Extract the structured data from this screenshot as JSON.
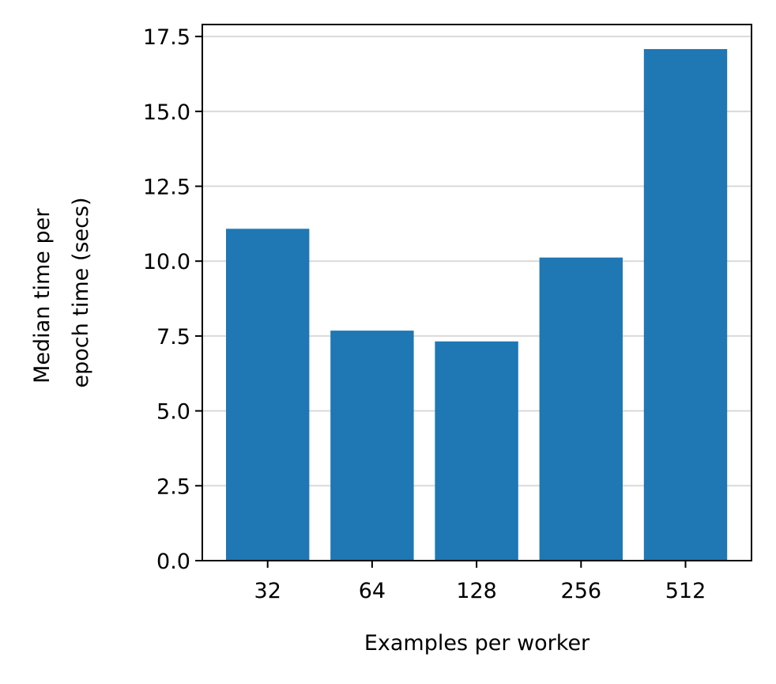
{
  "chart_data": {
    "type": "bar",
    "title": "",
    "xlabel": "Examples per worker",
    "ylabel_lines": [
      "Median time per",
      "epoch time (secs)"
    ],
    "categories": [
      "32",
      "64",
      "128",
      "256",
      "512"
    ],
    "values": [
      11.08,
      7.68,
      7.32,
      10.12,
      17.08
    ],
    "ylim": [
      0,
      17.9
    ],
    "yticks": [
      0.0,
      2.5,
      5.0,
      7.5,
      10.0,
      12.5,
      15.0,
      17.5
    ],
    "ytick_labels": [
      "0.0",
      "2.5",
      "5.0",
      "7.5",
      "10.0",
      "12.5",
      "15.0",
      "17.5"
    ],
    "grid": "y",
    "bar_color": "#1f77b4",
    "grid_color": "#d9d9d9"
  }
}
